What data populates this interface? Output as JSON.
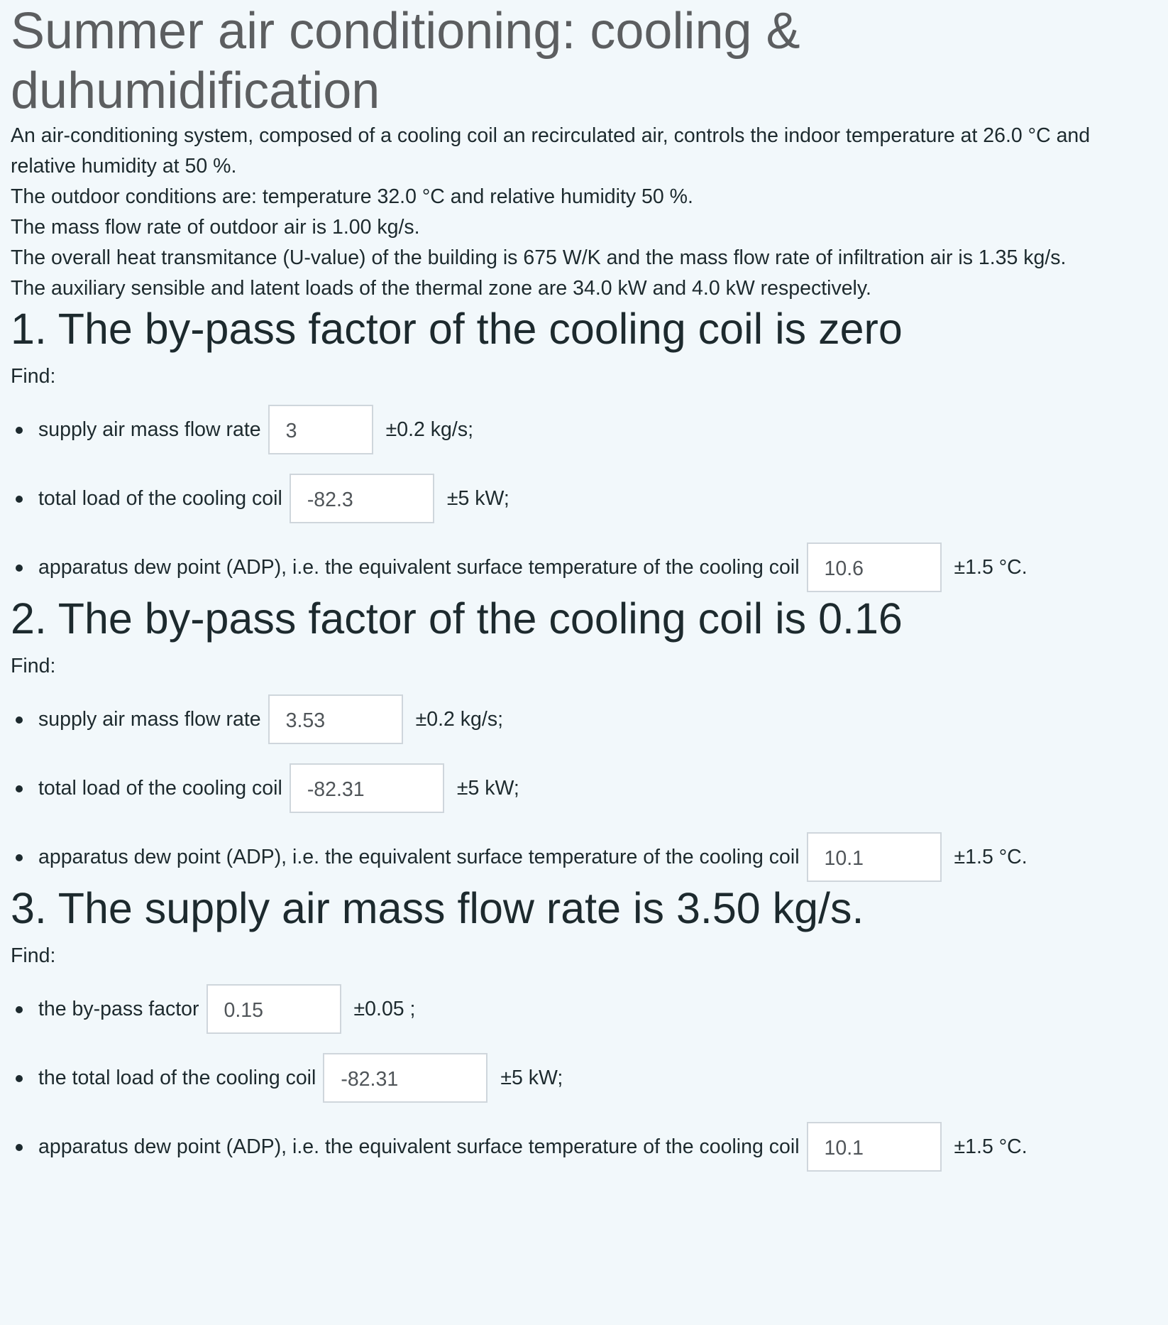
{
  "title": "Summer air conditioning: cooling & duhumidification",
  "intro": {
    "p1": "An air-conditioning system, composed of a cooling coil an recirculated air, controls the indoor temperature at 26.0 °C and relative humidity at 50 %.",
    "p2": "The outdoor conditions are: temperature 32.0 °C and relative humidity 50 %.",
    "p3": "The mass flow rate of outdoor air is 1.00 kg/s.",
    "p4": "The overall heat transmitance (U-value) of the building is 675 W/K and the mass flow rate of infiltration air is 1.35 kg/s.",
    "p5": "The auxiliary sensible and latent loads of the thermal zone are 34.0 kW and 4.0 kW respectively."
  },
  "sections": [
    {
      "heading": "1. The by-pass factor of the cooling coil is zero",
      "find": "Find:",
      "items": [
        {
          "label": "supply air mass flow rate",
          "value": "3",
          "tolerance": "±0.2 kg/s;"
        },
        {
          "label": "total load of the cooling coil",
          "value": "-82.3",
          "tolerance": "±5 kW;"
        },
        {
          "label": "apparatus dew point (ADP), i.e. the equivalent surface temperature of the cooling coil",
          "value": "10.6",
          "tolerance": "±1.5 °C."
        }
      ]
    },
    {
      "heading": "2. The by-pass factor of the cooling coil is 0.16",
      "find": "Find:",
      "items": [
        {
          "label": "supply air mass flow rate",
          "value": "3.53",
          "tolerance": "±0.2 kg/s;"
        },
        {
          "label": "total load of the cooling coil",
          "value": "-82.31",
          "tolerance": "±5 kW;"
        },
        {
          "label": "apparatus dew point (ADP), i.e. the equivalent surface temperature of the cooling coil",
          "value": "10.1",
          "tolerance": "±1.5 °C."
        }
      ]
    },
    {
      "heading": "3. The supply air mass flow rate is 3.50 kg/s.",
      "find": "Find:",
      "items": [
        {
          "label": "the by-pass factor",
          "value": "0.15",
          "tolerance": "±0.05 ;"
        },
        {
          "label": "the total load of the cooling coil",
          "value": "-82.31",
          "tolerance": "±5 kW;"
        },
        {
          "label": "apparatus dew point (ADP), i.e. the equivalent surface temperature of the cooling coil",
          "value": "10.1",
          "tolerance": "±1.5 °C."
        }
      ]
    }
  ]
}
